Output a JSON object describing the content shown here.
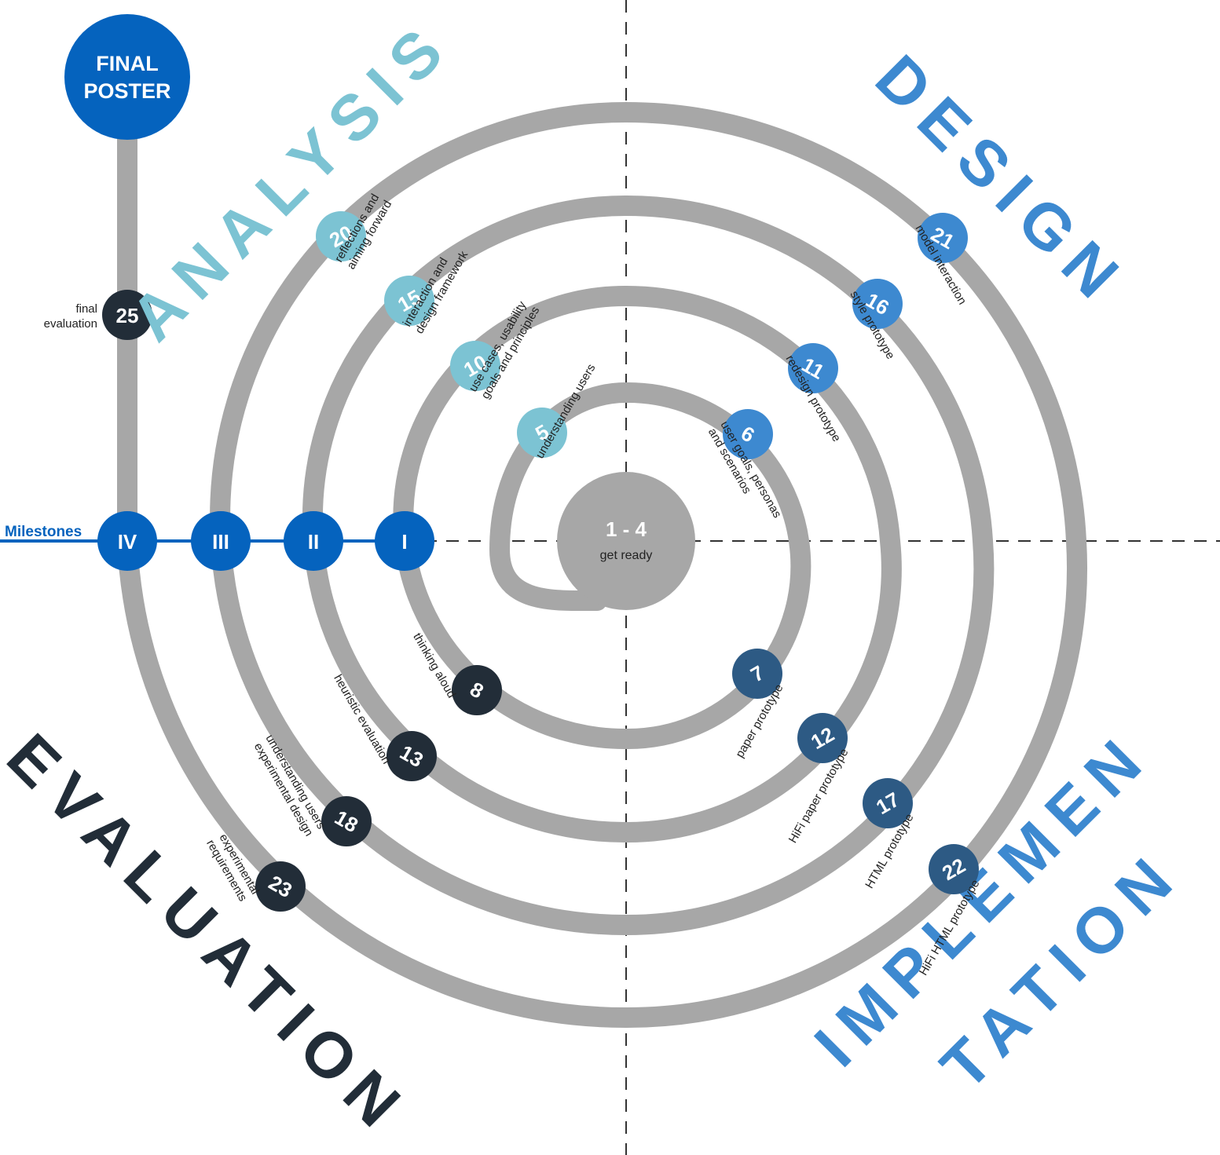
{
  "colors": {
    "track": "#a7a7a7",
    "milestone": "#0563be",
    "analysis": "#7cc3d3",
    "design": "#3d89d0",
    "implementation": "#2d5a84",
    "evaluation": "#222d38",
    "axis": "#333333"
  },
  "center": {
    "title": "1 - 4",
    "subtitle": "get ready"
  },
  "final_poster": {
    "line1": "FINAL",
    "line2": "POSTER"
  },
  "final_evaluation": {
    "number": "25",
    "line1": "final",
    "line2": "evaluation"
  },
  "milestones": {
    "title": "Milestones",
    "items": [
      "IV",
      "III",
      "II",
      "I"
    ]
  },
  "phases": {
    "analysis": "ANALYSIS",
    "design": "DESIGN",
    "implementation_line1": "IMPLEMEN",
    "implementation_line2": "TATION",
    "evaluation": "EVALUATION"
  },
  "steps": [
    {
      "number": "5",
      "phase": "analysis",
      "labels": [
        "understanding users"
      ]
    },
    {
      "number": "10",
      "phase": "analysis",
      "labels": [
        "use cases, usability",
        "goals and principles"
      ]
    },
    {
      "number": "15",
      "phase": "analysis",
      "labels": [
        "interaction and",
        "design framework"
      ]
    },
    {
      "number": "20",
      "phase": "analysis",
      "labels": [
        "reflections and",
        "aiming forward"
      ]
    },
    {
      "number": "6",
      "phase": "design",
      "labels": [
        "user goals, personas",
        "and scenarios"
      ]
    },
    {
      "number": "11",
      "phase": "design",
      "labels": [
        "redesign prototype"
      ]
    },
    {
      "number": "16",
      "phase": "design",
      "labels": [
        "style prototype"
      ]
    },
    {
      "number": "21",
      "phase": "design",
      "labels": [
        "model interaction"
      ]
    },
    {
      "number": "7",
      "phase": "implementation",
      "labels": [
        "paper prototype"
      ]
    },
    {
      "number": "12",
      "phase": "implementation",
      "labels": [
        "HiFi paper prototype"
      ]
    },
    {
      "number": "17",
      "phase": "implementation",
      "labels": [
        "HTML prototype"
      ]
    },
    {
      "number": "22",
      "phase": "implementation",
      "labels": [
        "HiFi HTML prototype"
      ]
    },
    {
      "number": "8",
      "phase": "evaluation",
      "labels": [
        "thinking aloud"
      ]
    },
    {
      "number": "13",
      "phase": "evaluation",
      "labels": [
        "heuristic evaluation"
      ]
    },
    {
      "number": "18",
      "phase": "evaluation",
      "labels": [
        "understanding users",
        "experimental design"
      ]
    },
    {
      "number": "23",
      "phase": "evaluation",
      "labels": [
        "experimental",
        "requirements"
      ]
    }
  ]
}
